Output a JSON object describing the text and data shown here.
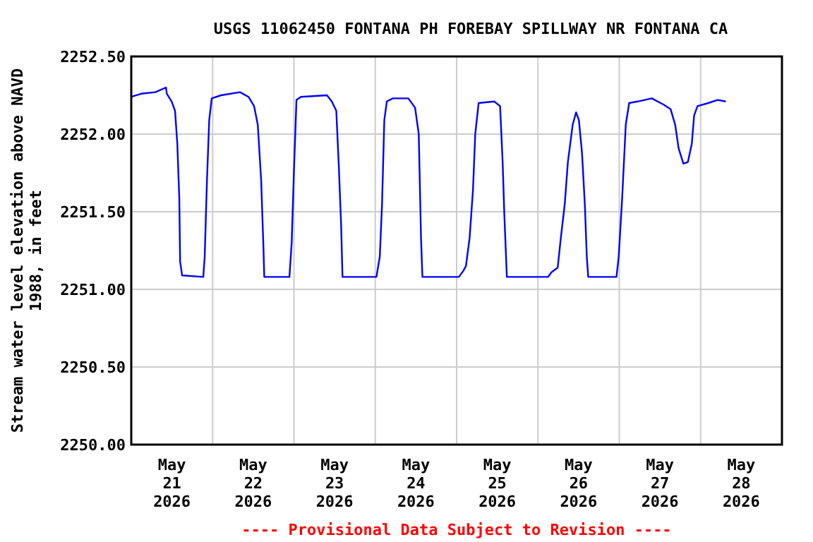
{
  "chart_data": {
    "type": "line",
    "title": "USGS 11062450 FONTANA PH FOREBAY SPILLWAY NR FONTANA CA",
    "ylabel": "Stream water level elevation above NAVD 1988, in feet",
    "annotations": [
      "---- Provisional Data Subject to Revision ----"
    ],
    "xlim": [
      "2026-05-21T00:00",
      "2026-05-29T00:00"
    ],
    "xticks": [
      {
        "value": "2026-05-21T12:00",
        "label": "May 21 2026"
      },
      {
        "value": "2026-05-22T12:00",
        "label": "May 22 2026"
      },
      {
        "value": "2026-05-23T12:00",
        "label": "May 23 2026"
      },
      {
        "value": "2026-05-24T12:00",
        "label": "May 24 2026"
      },
      {
        "value": "2026-05-25T12:00",
        "label": "May 25 2026"
      },
      {
        "value": "2026-05-26T12:00",
        "label": "May 26 2026"
      },
      {
        "value": "2026-05-27T12:00",
        "label": "May 27 2026"
      },
      {
        "value": "2026-05-28T12:00",
        "label": "May 28 2026"
      },
      {
        "value": "2026-05-22T00:00",
        "label": null
      },
      {
        "value": "2026-05-23T00:00",
        "label": null
      },
      {
        "value": "2026-05-24T00:00",
        "label": null
      },
      {
        "value": "2026-05-25T00:00",
        "label": null
      },
      {
        "value": "2026-05-26T00:00",
        "label": null
      },
      {
        "value": "2026-05-27T00:00",
        "label": null
      },
      {
        "value": "2026-05-28T00:00",
        "label": null
      }
    ],
    "ylim": [
      2250,
      2252.5
    ],
    "yticks": [
      {
        "value": 2250,
        "label": "2250.00"
      },
      {
        "value": 2250.5,
        "label": "2250.50"
      },
      {
        "value": 2251,
        "label": "2251.00"
      },
      {
        "value": 2251.5,
        "label": "2251.50"
      },
      {
        "value": 2252,
        "label": "2252.00"
      },
      {
        "value": 2252.5,
        "label": "2252.50"
      }
    ],
    "grid": true,
    "line_style": "solid",
    "series": [
      {
        "color": "#0000ff",
        "x": [
          "2026-05-21T00:00",
          "2026-05-21T02:55",
          "2026-05-21T07:05",
          "2026-05-21T10:15",
          "2026-05-21T10:30",
          "2026-05-21T11:55",
          "2026-05-21T12:55",
          "2026-05-21T13:35",
          "2026-05-21T14:10",
          "2026-05-21T14:25",
          "2026-05-21T15:00",
          "2026-05-21T21:15",
          "2026-05-21T21:40",
          "2026-05-21T22:20",
          "2026-05-21T23:00",
          "2026-05-21T23:45",
          "2026-05-22T02:30",
          "2026-05-22T08:05",
          "2026-05-22T10:35",
          "2026-05-22T12:15",
          "2026-05-22T13:20",
          "2026-05-22T14:20",
          "2026-05-22T15:00",
          "2026-05-22T15:15",
          "2026-05-22T22:40",
          "2026-05-22T23:20",
          "2026-05-23T00:00",
          "2026-05-23T00:45",
          "2026-05-23T02:05",
          "2026-05-23T09:45",
          "2026-05-23T11:10",
          "2026-05-23T12:30",
          "2026-05-23T13:15",
          "2026-05-23T13:55",
          "2026-05-23T14:20",
          "2026-05-24T00:20",
          "2026-05-24T01:20",
          "2026-05-24T02:00",
          "2026-05-24T02:40",
          "2026-05-24T03:25",
          "2026-05-24T05:10",
          "2026-05-24T09:45",
          "2026-05-24T11:45",
          "2026-05-24T12:50",
          "2026-05-24T13:30",
          "2026-05-24T13:55",
          "2026-05-25T00:40",
          "2026-05-25T02:00",
          "2026-05-25T02:45",
          "2026-05-25T03:50",
          "2026-05-25T04:50",
          "2026-05-25T05:30",
          "2026-05-25T06:30",
          "2026-05-25T11:05",
          "2026-05-25T12:50",
          "2026-05-25T13:35",
          "2026-05-25T14:05",
          "2026-05-25T14:50",
          "2026-05-26T03:00",
          "2026-05-26T04:00",
          "2026-05-26T05:50",
          "2026-05-26T06:45",
          "2026-05-26T07:55",
          "2026-05-26T08:50",
          "2026-05-26T10:15",
          "2026-05-26T11:15",
          "2026-05-26T12:05",
          "2026-05-26T13:00",
          "2026-05-26T13:50",
          "2026-05-26T14:25",
          "2026-05-26T14:50",
          "2026-05-26T23:10",
          "2026-05-26T23:50",
          "2026-05-27T00:50",
          "2026-05-27T01:55",
          "2026-05-27T02:55",
          "2026-05-27T05:25",
          "2026-05-27T09:35",
          "2026-05-27T13:05",
          "2026-05-27T15:10",
          "2026-05-27T16:30",
          "2026-05-27T17:30",
          "2026-05-27T18:55",
          "2026-05-27T20:15",
          "2026-05-27T21:25",
          "2026-05-27T22:05",
          "2026-05-27T23:05",
          "2026-05-28T02:15",
          "2026-05-28T05:00",
          "2026-05-28T07:25"
        ],
        "values": [
          2252.24,
          2252.26,
          2252.27,
          2252.3,
          2252.26,
          2252.21,
          2252.15,
          2251.94,
          2251.59,
          2251.18,
          2251.09,
          2251.08,
          2251.21,
          2251.7,
          2252.09,
          2252.23,
          2252.25,
          2252.27,
          2252.24,
          2252.18,
          2252.06,
          2251.7,
          2251.27,
          2251.08,
          2251.08,
          2251.3,
          2251.76,
          2252.22,
          2252.24,
          2252.25,
          2252.21,
          2252.15,
          2251.79,
          2251.42,
          2251.08,
          2251.08,
          2251.21,
          2251.55,
          2252.09,
          2252.21,
          2252.23,
          2252.23,
          2252.17,
          2252.0,
          2251.33,
          2251.08,
          2251.08,
          2251.12,
          2251.15,
          2251.33,
          2251.64,
          2252.0,
          2252.2,
          2252.21,
          2252.18,
          2251.82,
          2251.48,
          2251.08,
          2251.08,
          2251.11,
          2251.14,
          2251.33,
          2251.55,
          2251.82,
          2252.06,
          2252.14,
          2252.09,
          2251.88,
          2251.55,
          2251.21,
          2251.08,
          2251.08,
          2251.21,
          2251.58,
          2252.06,
          2252.2,
          2252.21,
          2252.23,
          2252.19,
          2252.16,
          2252.06,
          2251.91,
          2251.81,
          2251.82,
          2251.94,
          2252.12,
          2252.18,
          2252.2,
          2252.22,
          2252.21
        ]
      }
    ]
  }
}
